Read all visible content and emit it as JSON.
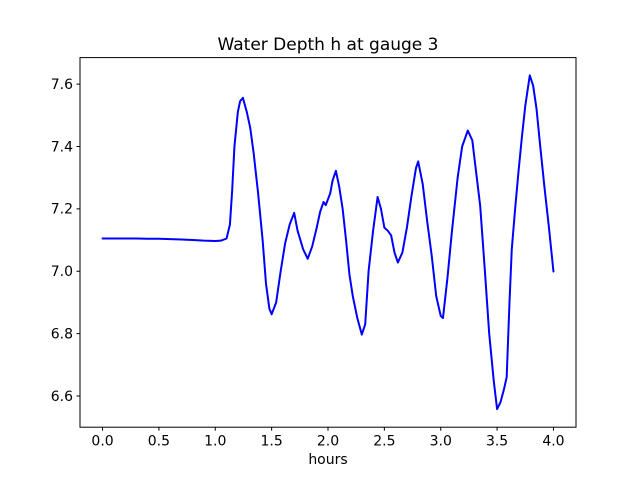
{
  "figure": {
    "background_color": "#ffffff",
    "spine_color": "#000000",
    "text_color": "#000000"
  },
  "chart_data": {
    "type": "line",
    "title": "Water Depth h at gauge 3",
    "xlabel": "hours",
    "ylabel": "",
    "grid": false,
    "legend": null,
    "xlim": [
      -0.2,
      4.2
    ],
    "ylim": [
      6.5,
      7.685
    ],
    "xticks": {
      "values": [
        0.0,
        0.5,
        1.0,
        1.5,
        2.0,
        2.5,
        3.0,
        3.5,
        4.0
      ],
      "labels": [
        "0.0",
        "0.5",
        "1.0",
        "1.5",
        "2.0",
        "2.5",
        "3.0",
        "3.5",
        "4.0"
      ]
    },
    "yticks": {
      "values": [
        6.6,
        6.8,
        7.0,
        7.2,
        7.4,
        7.6
      ],
      "labels": [
        "6.6",
        "6.8",
        "7.0",
        "7.2",
        "7.4",
        "7.6"
      ]
    },
    "series": [
      {
        "name": "water depth h",
        "color": "#0000ff",
        "x": [
          0.0,
          0.1,
          0.2,
          0.3,
          0.4,
          0.5,
          0.6,
          0.7,
          0.8,
          0.9,
          1.0,
          1.05,
          1.1,
          1.13,
          1.15,
          1.17,
          1.2,
          1.22,
          1.245,
          1.28,
          1.31,
          1.34,
          1.38,
          1.42,
          1.45,
          1.48,
          1.5,
          1.54,
          1.58,
          1.62,
          1.66,
          1.7,
          1.73,
          1.78,
          1.82,
          1.86,
          1.9,
          1.93,
          1.96,
          1.98,
          2.02,
          2.04,
          2.07,
          2.1,
          2.13,
          2.16,
          2.19,
          2.22,
          2.26,
          2.3,
          2.33,
          2.36,
          2.4,
          2.44,
          2.47,
          2.5,
          2.53,
          2.56,
          2.59,
          2.62,
          2.66,
          2.7,
          2.74,
          2.78,
          2.8,
          2.84,
          2.88,
          2.92,
          2.96,
          3.0,
          3.02,
          3.06,
          3.1,
          3.15,
          3.19,
          3.24,
          3.28,
          3.31,
          3.35,
          3.39,
          3.43,
          3.47,
          3.5,
          3.53,
          3.56,
          3.585,
          3.61,
          3.63,
          3.66,
          3.69,
          3.72,
          3.75,
          3.79,
          3.82,
          3.85,
          3.88,
          3.92,
          3.96,
          4.0
        ],
        "y": [
          7.105,
          7.105,
          7.105,
          7.105,
          7.104,
          7.104,
          7.103,
          7.102,
          7.1,
          7.098,
          7.097,
          7.098,
          7.105,
          7.15,
          7.26,
          7.4,
          7.51,
          7.545,
          7.556,
          7.51,
          7.46,
          7.38,
          7.25,
          7.1,
          6.96,
          6.88,
          6.862,
          6.9,
          7.0,
          7.09,
          7.15,
          7.187,
          7.13,
          7.07,
          7.04,
          7.08,
          7.14,
          7.19,
          7.222,
          7.212,
          7.25,
          7.29,
          7.322,
          7.27,
          7.2,
          7.1,
          6.99,
          6.92,
          6.85,
          6.797,
          6.83,
          7.0,
          7.13,
          7.238,
          7.2,
          7.14,
          7.13,
          7.115,
          7.06,
          7.028,
          7.06,
          7.14,
          7.24,
          7.33,
          7.352,
          7.28,
          7.16,
          7.05,
          6.92,
          6.857,
          6.85,
          6.98,
          7.13,
          7.3,
          7.4,
          7.451,
          7.42,
          7.33,
          7.21,
          7.01,
          6.8,
          6.65,
          6.558,
          6.58,
          6.62,
          6.66,
          6.9,
          7.07,
          7.2,
          7.32,
          7.43,
          7.53,
          7.628,
          7.595,
          7.52,
          7.41,
          7.27,
          7.14,
          6.999
        ]
      }
    ]
  }
}
